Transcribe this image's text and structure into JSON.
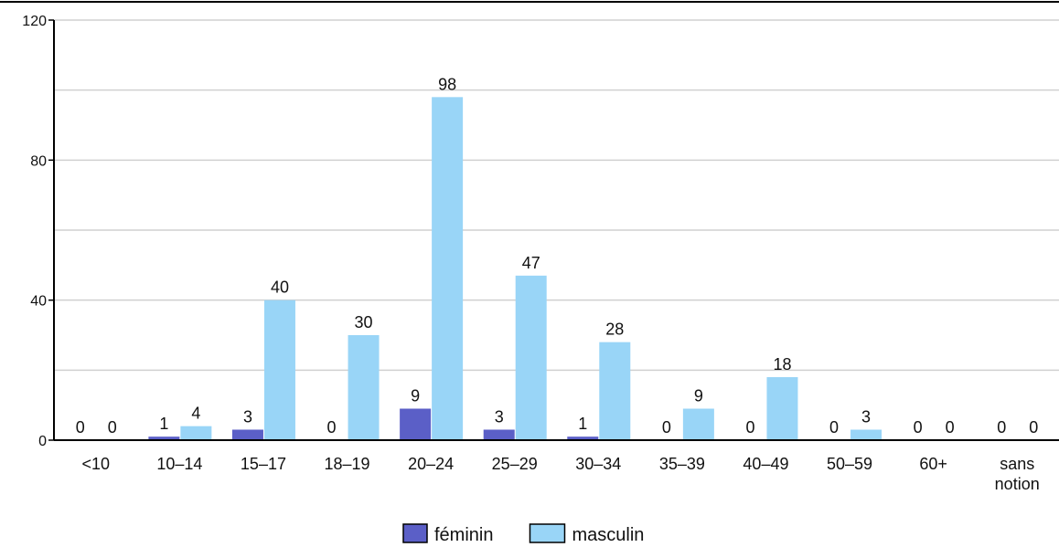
{
  "chart_data": {
    "type": "bar",
    "categories": [
      "<10",
      "10–14",
      "15–17",
      "18–19",
      "20–24",
      "25–29",
      "30–34",
      "35–39",
      "40–49",
      "50–59",
      "60+",
      "sans notion"
    ],
    "series": [
      {
        "name": "féminin",
        "color": "#5b5fc7",
        "values": [
          0,
          1,
          3,
          0,
          9,
          3,
          1,
          0,
          0,
          0,
          0,
          0
        ]
      },
      {
        "name": "masculin",
        "color": "#99d5f7",
        "values": [
          0,
          4,
          40,
          30,
          98,
          47,
          28,
          9,
          18,
          3,
          0,
          0
        ]
      }
    ],
    "ylim": [
      0,
      120
    ],
    "yticks": [
      0,
      40,
      80,
      120
    ],
    "minor_gridlines": [
      20,
      60,
      100
    ],
    "grid": true,
    "legend": "bottom"
  }
}
